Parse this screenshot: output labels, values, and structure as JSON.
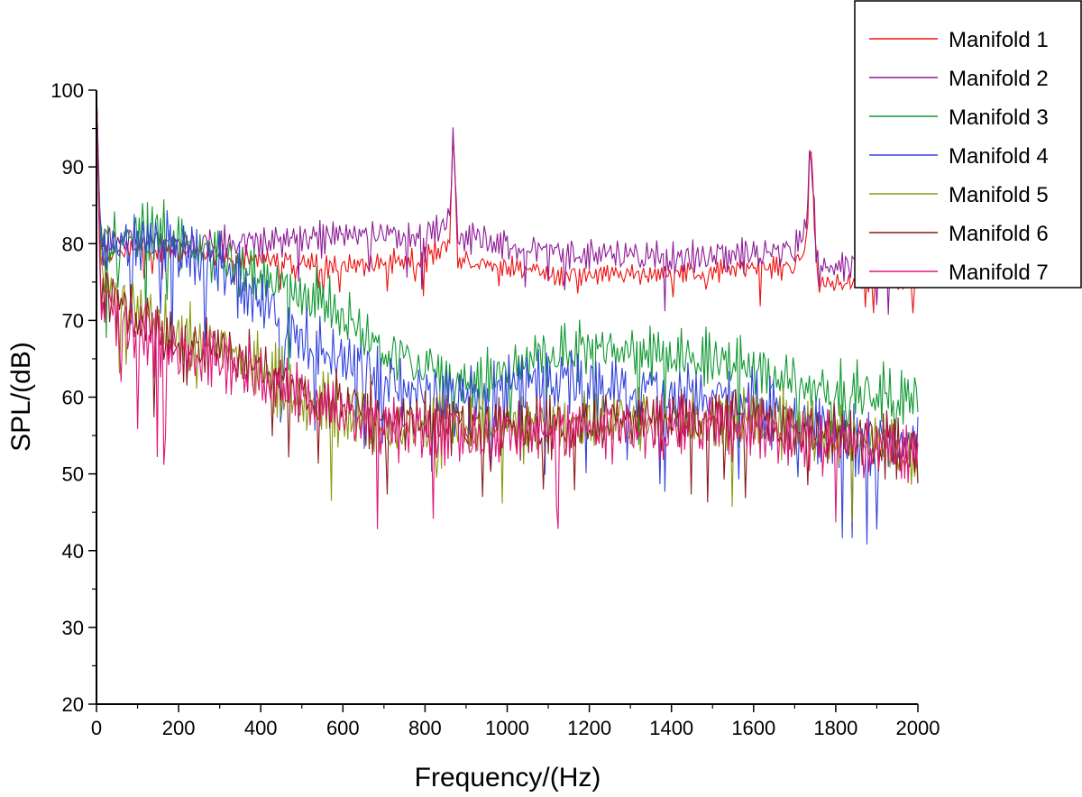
{
  "chart_data": {
    "type": "line",
    "title": "",
    "xlabel": "Frequency/(Hz)",
    "ylabel": "SPL/(dB)",
    "xlim": [
      0,
      2000
    ],
    "ylim": [
      20,
      100
    ],
    "xticks": [
      0,
      200,
      400,
      600,
      800,
      1000,
      1200,
      1400,
      1600,
      1800,
      2000
    ],
    "yticks": [
      20,
      30,
      40,
      50,
      60,
      70,
      80,
      90,
      100
    ],
    "grid": false,
    "legend_position": "top-right",
    "series": [
      {
        "name": "Manifold 1",
        "color": "#ee1111",
        "profile": [
          [
            0,
            100
          ],
          [
            10,
            78
          ],
          [
            60,
            79
          ],
          [
            200,
            79
          ],
          [
            400,
            78
          ],
          [
            600,
            77
          ],
          [
            800,
            78
          ],
          [
            860,
            80
          ],
          [
            868,
            95
          ],
          [
            880,
            78
          ],
          [
            1100,
            76
          ],
          [
            1400,
            76
          ],
          [
            1700,
            77
          ],
          [
            1730,
            80
          ],
          [
            1738,
            95
          ],
          [
            1755,
            75
          ],
          [
            2000,
            75
          ]
        ]
      },
      {
        "name": "Manifold 2",
        "color": "#8e1b96",
        "profile": [
          [
            0,
            100
          ],
          [
            10,
            81
          ],
          [
            200,
            80
          ],
          [
            400,
            80
          ],
          [
            600,
            81
          ],
          [
            800,
            81
          ],
          [
            860,
            83
          ],
          [
            868,
            95
          ],
          [
            880,
            81
          ],
          [
            1100,
            79
          ],
          [
            1400,
            78
          ],
          [
            1700,
            79
          ],
          [
            1730,
            83
          ],
          [
            1738,
            94
          ],
          [
            1755,
            77
          ],
          [
            2000,
            77
          ]
        ]
      },
      {
        "name": "Manifold 3",
        "color": "#119933",
        "profile": [
          [
            0,
            100
          ],
          [
            10,
            80
          ],
          [
            150,
            82
          ],
          [
            300,
            78
          ],
          [
            500,
            73
          ],
          [
            550,
            73
          ],
          [
            700,
            66
          ],
          [
            900,
            62
          ],
          [
            1100,
            66
          ],
          [
            1300,
            66
          ],
          [
            1600,
            64
          ],
          [
            1800,
            61
          ],
          [
            2000,
            60
          ]
        ]
      },
      {
        "name": "Manifold 4",
        "color": "#3344dd",
        "profile": [
          [
            0,
            100
          ],
          [
            10,
            79
          ],
          [
            150,
            80
          ],
          [
            300,
            77
          ],
          [
            500,
            68
          ],
          [
            700,
            62
          ],
          [
            900,
            59
          ],
          [
            1100,
            62
          ],
          [
            1300,
            61
          ],
          [
            1600,
            59
          ],
          [
            1800,
            55
          ],
          [
            2000,
            53
          ]
        ]
      },
      {
        "name": "Manifold 5",
        "color": "#8a9a10",
        "profile": [
          [
            0,
            100
          ],
          [
            10,
            75
          ],
          [
            200,
            68
          ],
          [
            300,
            67
          ],
          [
            500,
            60
          ],
          [
            700,
            56
          ],
          [
            1000,
            56
          ],
          [
            1300,
            57
          ],
          [
            1600,
            57
          ],
          [
            1800,
            55
          ],
          [
            2000,
            52
          ]
        ]
      },
      {
        "name": "Manifold 6",
        "color": "#8b1a1a",
        "profile": [
          [
            0,
            100
          ],
          [
            10,
            74
          ],
          [
            200,
            66
          ],
          [
            300,
            66
          ],
          [
            500,
            61
          ],
          [
            700,
            57
          ],
          [
            1000,
            56
          ],
          [
            1300,
            57
          ],
          [
            1600,
            57
          ],
          [
            1800,
            55
          ],
          [
            2000,
            53
          ]
        ]
      },
      {
        "name": "Manifold 7",
        "color": "#e0157a",
        "profile": [
          [
            0,
            100
          ],
          [
            10,
            72
          ],
          [
            200,
            65
          ],
          [
            300,
            65
          ],
          [
            500,
            60
          ],
          [
            700,
            56
          ],
          [
            1000,
            55
          ],
          [
            1300,
            56
          ],
          [
            1600,
            56
          ],
          [
            1800,
            54
          ],
          [
            2000,
            52
          ]
        ]
      }
    ]
  }
}
